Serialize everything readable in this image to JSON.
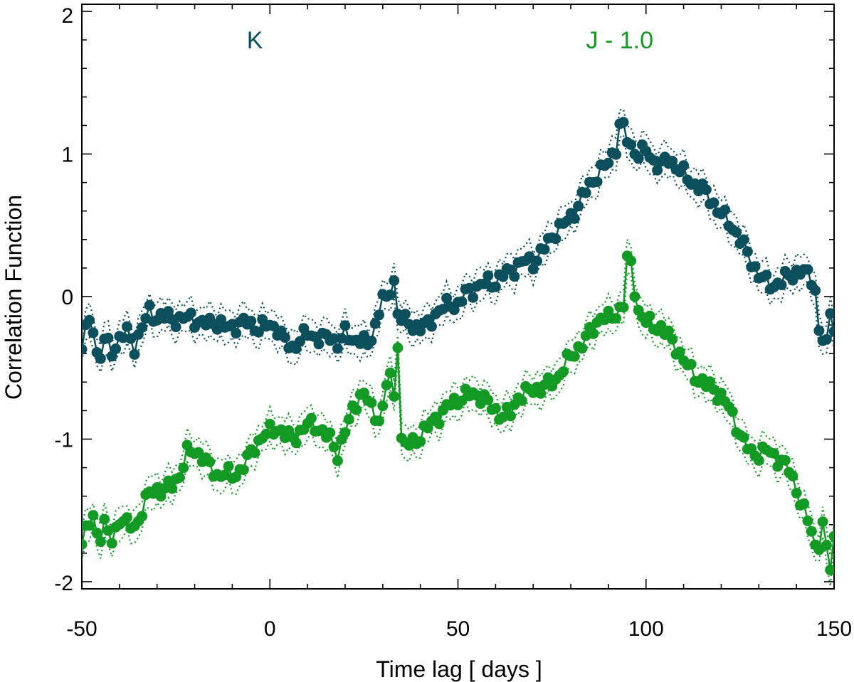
{
  "chart_data": {
    "type": "line",
    "title": "",
    "xlabel": "Time lag  [ days ]",
    "ylabel": "Correlation Function",
    "xlim": [
      -50,
      150
    ],
    "ylim": [
      -2.05,
      2.05
    ],
    "xticks": [
      -50,
      0,
      50,
      100,
      150
    ],
    "xtick_labels": [
      "-50",
      "0",
      "50",
      "100",
      "150"
    ],
    "yticks": [
      -2,
      -1,
      0,
      1,
      2
    ],
    "ytick_labels": [
      "-2",
      "-1",
      "0",
      "1",
      "2"
    ],
    "grid": false,
    "series": [
      {
        "name": "K",
        "label": "K",
        "color": "#0b4f5c",
        "label_pos": [
          -4,
          1.8
        ],
        "anchors": [
          [
            -50,
            -0.35
          ],
          [
            -48.5,
            -0.18
          ],
          [
            -47,
            -0.2
          ],
          [
            -45.5,
            -0.5
          ],
          [
            -44,
            -0.3
          ],
          [
            -42,
            -0.38
          ],
          [
            -40,
            -0.3
          ],
          [
            -38,
            -0.25
          ],
          [
            -36,
            -0.35
          ],
          [
            -34,
            -0.22
          ],
          [
            -32,
            -0.1
          ],
          [
            -30,
            -0.15
          ],
          [
            -27,
            -0.14
          ],
          [
            -24,
            -0.17
          ],
          [
            -21,
            -0.14
          ],
          [
            -18,
            -0.2
          ],
          [
            -15,
            -0.17
          ],
          [
            -12,
            -0.22
          ],
          [
            -9,
            -0.2
          ],
          [
            -6,
            -0.18
          ],
          [
            -3,
            -0.22
          ],
          [
            0,
            -0.2
          ],
          [
            2,
            -0.22
          ],
          [
            4,
            -0.32
          ],
          [
            6,
            -0.36
          ],
          [
            8,
            -0.3
          ],
          [
            10,
            -0.26
          ],
          [
            12,
            -0.28
          ],
          [
            14,
            -0.3
          ],
          [
            16,
            -0.28
          ],
          [
            18,
            -0.33
          ],
          [
            20,
            -0.26
          ],
          [
            22,
            -0.3
          ],
          [
            24,
            -0.3
          ],
          [
            26,
            -0.35
          ],
          [
            28,
            -0.2
          ],
          [
            30,
            0.0
          ],
          [
            31,
            -0.05
          ],
          [
            32,
            0.05
          ],
          [
            33,
            0.12
          ],
          [
            34,
            -0.12
          ],
          [
            35,
            -0.15
          ],
          [
            36,
            -0.18
          ],
          [
            38,
            -0.2
          ],
          [
            40,
            -0.22
          ],
          [
            42,
            -0.2
          ],
          [
            44,
            -0.12
          ],
          [
            46,
            -0.08
          ],
          [
            48,
            -0.05
          ],
          [
            50,
            -0.06
          ],
          [
            52,
            0.02
          ],
          [
            54,
            0.05
          ],
          [
            56,
            0.08
          ],
          [
            58,
            0.1
          ],
          [
            60,
            0.1
          ],
          [
            62,
            0.15
          ],
          [
            64,
            0.18
          ],
          [
            66,
            0.22
          ],
          [
            68,
            0.25
          ],
          [
            70,
            0.24
          ],
          [
            72,
            0.3
          ],
          [
            74,
            0.38
          ],
          [
            76,
            0.46
          ],
          [
            78,
            0.5
          ],
          [
            80,
            0.56
          ],
          [
            82,
            0.64
          ],
          [
            84,
            0.74
          ],
          [
            86,
            0.82
          ],
          [
            88,
            0.88
          ],
          [
            90,
            0.94
          ],
          [
            92,
            1.05
          ],
          [
            93,
            1.2
          ],
          [
            94,
            1.18
          ],
          [
            95,
            1.1
          ],
          [
            96,
            1.05
          ],
          [
            98,
            1.0
          ],
          [
            100,
            1.02
          ],
          [
            102,
            0.95
          ],
          [
            104,
            0.92
          ],
          [
            106,
            0.96
          ],
          [
            108,
            0.92
          ],
          [
            110,
            0.86
          ],
          [
            112,
            0.8
          ],
          [
            114,
            0.78
          ],
          [
            116,
            0.72
          ],
          [
            118,
            0.65
          ],
          [
            120,
            0.58
          ],
          [
            122,
            0.52
          ],
          [
            124,
            0.45
          ],
          [
            126,
            0.35
          ],
          [
            128,
            0.25
          ],
          [
            130,
            0.15
          ],
          [
            132,
            0.1
          ],
          [
            134,
            0.08
          ],
          [
            136,
            0.1
          ],
          [
            138,
            0.15
          ],
          [
            140,
            0.17
          ],
          [
            142,
            0.17
          ],
          [
            144,
            0.13
          ],
          [
            145,
            0.05
          ],
          [
            146,
            -0.25
          ],
          [
            147,
            -0.3
          ],
          [
            148,
            -0.35
          ],
          [
            149,
            -0.1
          ],
          [
            150,
            -0.2
          ]
        ]
      },
      {
        "name": "J - 1.0",
        "label": "J - 1.0",
        "color": "#139a24",
        "label_pos": [
          93,
          1.8
        ],
        "anchors": [
          [
            -50,
            -1.72
          ],
          [
            -48.5,
            -1.62
          ],
          [
            -47,
            -1.55
          ],
          [
            -45.5,
            -1.7
          ],
          [
            -44,
            -1.6
          ],
          [
            -42,
            -1.72
          ],
          [
            -40,
            -1.55
          ],
          [
            -38,
            -1.6
          ],
          [
            -36,
            -1.62
          ],
          [
            -34,
            -1.5
          ],
          [
            -32,
            -1.38
          ],
          [
            -30,
            -1.35
          ],
          [
            -28,
            -1.36
          ],
          [
            -26,
            -1.32
          ],
          [
            -24,
            -1.25
          ],
          [
            -22,
            -1.1
          ],
          [
            -20,
            -1.08
          ],
          [
            -18,
            -1.12
          ],
          [
            -16,
            -1.2
          ],
          [
            -14,
            -1.25
          ],
          [
            -12,
            -1.24
          ],
          [
            -10,
            -1.26
          ],
          [
            -8,
            -1.22
          ],
          [
            -6,
            -1.15
          ],
          [
            -4,
            -1.05
          ],
          [
            -2,
            -0.98
          ],
          [
            0,
            -0.95
          ],
          [
            2,
            -0.92
          ],
          [
            4,
            -0.97
          ],
          [
            6,
            -1.0
          ],
          [
            8,
            -0.95
          ],
          [
            10,
            -0.9
          ],
          [
            12,
            -0.9
          ],
          [
            14,
            -0.95
          ],
          [
            16,
            -1.0
          ],
          [
            18,
            -1.1
          ],
          [
            20,
            -0.95
          ],
          [
            22,
            -0.8
          ],
          [
            24,
            -0.68
          ],
          [
            26,
            -0.72
          ],
          [
            28,
            -0.85
          ],
          [
            30,
            -0.8
          ],
          [
            31,
            -0.62
          ],
          [
            32,
            -0.55
          ],
          [
            33,
            -0.72
          ],
          [
            34,
            -0.3
          ],
          [
            35,
            -1.0
          ],
          [
            36,
            -1.05
          ],
          [
            38,
            -1.02
          ],
          [
            40,
            -0.98
          ],
          [
            42,
            -0.92
          ],
          [
            44,
            -0.85
          ],
          [
            46,
            -0.82
          ],
          [
            48,
            -0.75
          ],
          [
            50,
            -0.72
          ],
          [
            52,
            -0.7
          ],
          [
            54,
            -0.68
          ],
          [
            56,
            -0.7
          ],
          [
            58,
            -0.75
          ],
          [
            60,
            -0.8
          ],
          [
            62,
            -0.84
          ],
          [
            64,
            -0.82
          ],
          [
            66,
            -0.7
          ],
          [
            68,
            -0.68
          ],
          [
            70,
            -0.65
          ],
          [
            72,
            -0.64
          ],
          [
            74,
            -0.62
          ],
          [
            76,
            -0.58
          ],
          [
            78,
            -0.5
          ],
          [
            80,
            -0.42
          ],
          [
            82,
            -0.36
          ],
          [
            84,
            -0.3
          ],
          [
            86,
            -0.22
          ],
          [
            88,
            -0.14
          ],
          [
            90,
            -0.16
          ],
          [
            92,
            -0.12
          ],
          [
            94,
            -0.05
          ],
          [
            95,
            0.25
          ],
          [
            96,
            0.22
          ],
          [
            97,
            0.05
          ],
          [
            98,
            -0.1
          ],
          [
            100,
            -0.18
          ],
          [
            102,
            -0.2
          ],
          [
            104,
            -0.22
          ],
          [
            106,
            -0.28
          ],
          [
            108,
            -0.35
          ],
          [
            110,
            -0.45
          ],
          [
            112,
            -0.52
          ],
          [
            114,
            -0.58
          ],
          [
            116,
            -0.62
          ],
          [
            118,
            -0.65
          ],
          [
            120,
            -0.7
          ],
          [
            122,
            -0.78
          ],
          [
            124,
            -0.9
          ],
          [
            126,
            -1.02
          ],
          [
            128,
            -1.1
          ],
          [
            130,
            -1.1
          ],
          [
            132,
            -1.08
          ],
          [
            134,
            -1.12
          ],
          [
            136,
            -1.15
          ],
          [
            138,
            -1.22
          ],
          [
            140,
            -1.35
          ],
          [
            142,
            -1.5
          ],
          [
            144,
            -1.65
          ],
          [
            145,
            -1.75
          ],
          [
            146,
            -1.72
          ],
          [
            147,
            -1.6
          ],
          [
            148,
            -1.78
          ],
          [
            149,
            -1.9
          ],
          [
            150,
            -1.7
          ]
        ]
      }
    ]
  }
}
